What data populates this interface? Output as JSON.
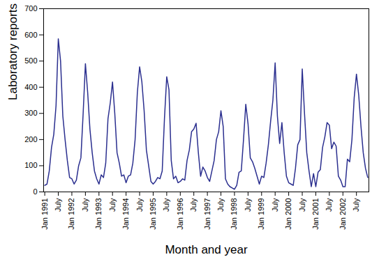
{
  "chart_data": {
    "type": "line",
    "x_label": "Month and year",
    "y_label": "Laboratory reports",
    "color": "#2b2f8f",
    "ylim": [
      0,
      700
    ],
    "yticks": [
      0,
      100,
      200,
      300,
      400,
      500,
      600,
      700
    ],
    "grid": false,
    "categories": [
      "Jan 1991",
      null,
      null,
      null,
      null,
      null,
      "July",
      null,
      null,
      null,
      null,
      null,
      "Jan 1992",
      null,
      null,
      null,
      null,
      null,
      "July",
      null,
      null,
      null,
      null,
      null,
      "Jan 1993",
      null,
      null,
      null,
      null,
      null,
      "July",
      null,
      null,
      null,
      null,
      null,
      "Jan 1994",
      null,
      null,
      null,
      null,
      null,
      "July",
      null,
      null,
      null,
      null,
      null,
      "Jan 1995",
      null,
      null,
      null,
      null,
      null,
      "July",
      null,
      null,
      null,
      null,
      null,
      "Jan 1996",
      null,
      null,
      null,
      null,
      null,
      "July",
      null,
      null,
      null,
      null,
      null,
      "Jan 1997",
      null,
      null,
      null,
      null,
      null,
      "July",
      null,
      null,
      null,
      null,
      null,
      "Jan 1998",
      null,
      null,
      null,
      null,
      null,
      "July",
      null,
      null,
      null,
      null,
      null,
      "Jan 1999",
      null,
      null,
      null,
      null,
      null,
      "July",
      null,
      null,
      null,
      null,
      null,
      "Jan 2000",
      null,
      null,
      null,
      null,
      null,
      "July",
      null,
      null,
      null,
      null,
      null,
      "Jan 2001",
      null,
      null,
      null,
      null,
      null,
      "July",
      null,
      null,
      null,
      null,
      null,
      "Jan 2002",
      null,
      null,
      null,
      null,
      null,
      "July",
      null,
      null,
      null,
      null,
      null
    ],
    "values": [
      25,
      30,
      80,
      170,
      220,
      330,
      585,
      500,
      290,
      200,
      120,
      55,
      50,
      30,
      45,
      100,
      130,
      300,
      490,
      380,
      240,
      150,
      80,
      50,
      30,
      65,
      55,
      110,
      280,
      340,
      420,
      300,
      150,
      110,
      60,
      65,
      35,
      60,
      65,
      110,
      200,
      380,
      478,
      420,
      310,
      160,
      100,
      40,
      30,
      40,
      55,
      50,
      80,
      280,
      440,
      390,
      120,
      50,
      60,
      35,
      40,
      50,
      45,
      120,
      160,
      230,
      240,
      262,
      150,
      60,
      95,
      80,
      55,
      40,
      80,
      120,
      200,
      230,
      310,
      250,
      50,
      30,
      20,
      15,
      10,
      25,
      75,
      80,
      200,
      335,
      260,
      130,
      115,
      90,
      60,
      30,
      60,
      55,
      110,
      180,
      270,
      350,
      493,
      290,
      185,
      265,
      150,
      60,
      35,
      30,
      25,
      90,
      180,
      200,
      470,
      300,
      150,
      80,
      20,
      70,
      20,
      75,
      85,
      170,
      210,
      265,
      255,
      165,
      190,
      175,
      60,
      45,
      20,
      20,
      125,
      115,
      200,
      360,
      450,
      370,
      250,
      150,
      90,
      55
    ]
  }
}
